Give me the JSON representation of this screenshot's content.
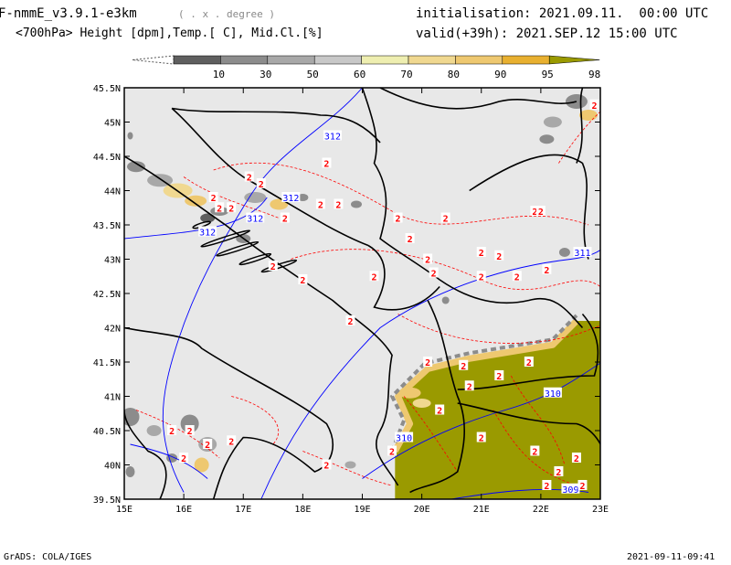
{
  "header": {
    "model": "F-nmmE_v3.9.1-e3km",
    "units_note": "( . x . degree )",
    "fields": "<700hPa> Height [dpm],Temp.[ C], Mid.Cl.[%]",
    "init": "initialisation: 2021.09.11.  00:00 UTC",
    "valid": "valid(+39h): 2021.SEP.12 15:00 UTC"
  },
  "colorbar": {
    "labels": [
      "10",
      "30",
      "50",
      "60",
      "70",
      "80",
      "90",
      "95",
      "98"
    ],
    "colors": [
      "#5f5f5f",
      "#8c8c8c",
      "#a8a8a8",
      "#c8c8c8",
      "#eeeeb0",
      "#f0d890",
      "#eec870",
      "#e8b030",
      "#9a9a00"
    ]
  },
  "axes": {
    "lat_labels": [
      "45.5N",
      "45N",
      "44.5N",
      "44N",
      "43.5N",
      "43N",
      "42.5N",
      "42N",
      "41.5N",
      "41N",
      "40.5N",
      "40N",
      "39.5N"
    ],
    "lon_labels": [
      "15E",
      "16E",
      "17E",
      "18E",
      "19E",
      "20E",
      "21E",
      "22E",
      "23E"
    ]
  },
  "contours": {
    "height_labels": [
      "312",
      "312",
      "312",
      "312",
      "311",
      "310",
      "310",
      "309"
    ],
    "temp_labels": [
      "2",
      "2",
      "2",
      "2",
      "2",
      "2",
      "2",
      "2",
      "2",
      "2",
      "2",
      "2",
      "2",
      "2",
      "2",
      "2",
      "2",
      "2",
      "2",
      "2",
      "2",
      "2",
      "2",
      "2",
      "2",
      "2",
      "2",
      "2",
      "2",
      "2",
      "2",
      "2",
      "2",
      "2",
      "2",
      "2",
      "2",
      "2",
      "2",
      "2",
      "2",
      "2",
      "2",
      "2",
      "2"
    ]
  },
  "footer": {
    "left": "GrADS: COLA/IGES",
    "right": "2021-09-11-09:41"
  },
  "style": {
    "land": "#e8e8e8",
    "border": "#000000",
    "height_line": "#0000ff",
    "temp_line": "#ff0000",
    "cloud_max": "#9a9a00"
  }
}
